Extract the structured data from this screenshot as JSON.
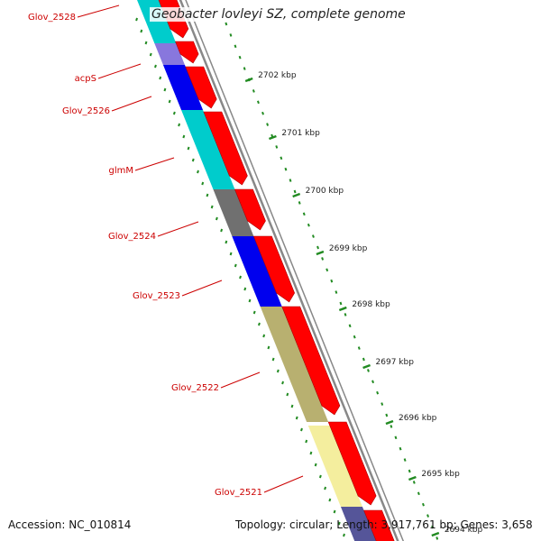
{
  "title": "Geobacter lovleyi SZ, complete genome",
  "accession": "Accession: NC_010814",
  "topology": "Topology: circular; Length: 3,917,761 bp; Genes: 3,658",
  "gene_labels": [
    "Glov_2528",
    "acpS",
    "Glov_2526",
    "glmM",
    "Glov_2524",
    "Glov_2523",
    "Glov_2522",
    "Glov_2521"
  ],
  "tick_labels": [
    "2702 kbp",
    "2701 kbp",
    "2700 kbp",
    "2699 kbp",
    "2698 kbp",
    "2697 kbp",
    "2696 kbp",
    "2695 kbp",
    "2694 kbp"
  ],
  "colors": {
    "cds_strand": "#ff0000",
    "backbone": "#888888",
    "ticks": "#228b22",
    "label": "#cc0000",
    "cyan": "#00cccc",
    "lavender": "#8877dd",
    "blue": "#0000ee",
    "gray": "#707070",
    "olive": "#b8b070",
    "pale_yellow": "#f4ee9e",
    "slate": "#555599"
  }
}
